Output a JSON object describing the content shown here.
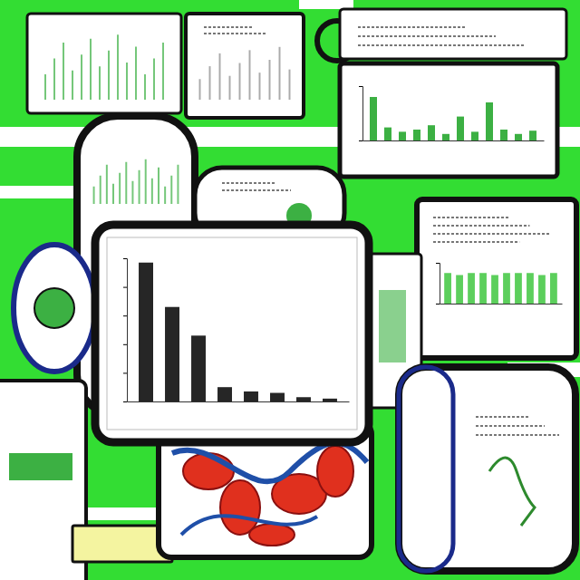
{
  "chart_data": [
    {
      "type": "bar",
      "categories": [
        null,
        null,
        null,
        null,
        null,
        null,
        null,
        null
      ],
      "values": [
        97,
        66,
        46,
        10,
        7,
        6,
        3,
        2
      ],
      "color": "#262626",
      "ylim": [
        0,
        100
      ],
      "yticks": [
        0,
        20,
        40,
        60,
        80,
        100
      ],
      "grid": false,
      "tick_labels": false
    },
    {
      "type": "bar",
      "categories": [
        null,
        null,
        null,
        null,
        null,
        null,
        null,
        null,
        null,
        null,
        null,
        null
      ],
      "values": [
        40,
        12,
        8,
        10,
        14,
        6,
        22,
        8,
        35,
        10,
        6,
        9
      ],
      "color": "#3cb043",
      "ylim": [
        0,
        50
      ],
      "yticks": [
        0,
        50
      ],
      "grid": false,
      "tick_labels": false
    },
    {
      "type": "bar",
      "categories": [
        null,
        null,
        null,
        null,
        null,
        null,
        null,
        null,
        null,
        null
      ],
      "values": [
        30,
        28,
        30,
        30,
        28,
        30,
        30,
        30,
        28,
        30
      ],
      "color": "#5ccf5c",
      "ylim": [
        0,
        40
      ],
      "yticks": [
        0,
        40
      ],
      "grid": false,
      "tick_labels": false
    }
  ]
}
